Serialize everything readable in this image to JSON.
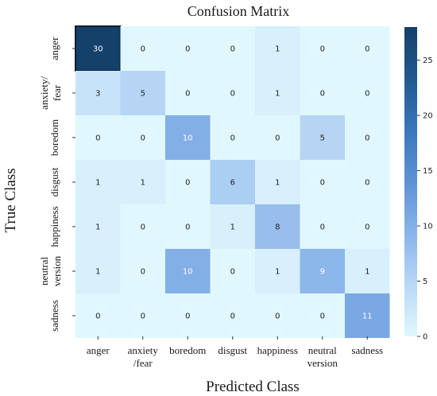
{
  "chart_data": {
    "type": "heatmap",
    "title": "Confusion Matrix",
    "xlabel": "Predicted Class",
    "ylabel": "True Class",
    "x_categories": [
      "anger",
      "anxiety\n/fear",
      "boredom",
      "disgust",
      "happiness",
      "neutral\nversion",
      "sadness"
    ],
    "y_categories": [
      "anger",
      "anxiety/\nfear",
      "boredom",
      "disgust",
      "happiness",
      "neutral\nversion",
      "sadness"
    ],
    "values": [
      [
        30,
        0,
        0,
        0,
        1,
        0,
        0
      ],
      [
        3,
        5,
        0,
        0,
        1,
        0,
        0
      ],
      [
        0,
        0,
        10,
        0,
        0,
        5,
        0
      ],
      [
        1,
        1,
        0,
        6,
        1,
        0,
        0
      ],
      [
        1,
        0,
        0,
        1,
        8,
        0,
        0
      ],
      [
        1,
        0,
        10,
        0,
        1,
        9,
        1
      ],
      [
        0,
        0,
        0,
        0,
        0,
        0,
        11
      ]
    ],
    "colorbar": {
      "ticks": [
        0,
        5,
        10,
        15,
        20,
        25
      ],
      "vmin": 0,
      "vmax": 28,
      "colors": [
        "#e0f7fd",
        "#b9d8f6",
        "#89b4ea",
        "#5d93d4",
        "#3a77bb",
        "#225a8f",
        "#14406a"
      ]
    }
  }
}
